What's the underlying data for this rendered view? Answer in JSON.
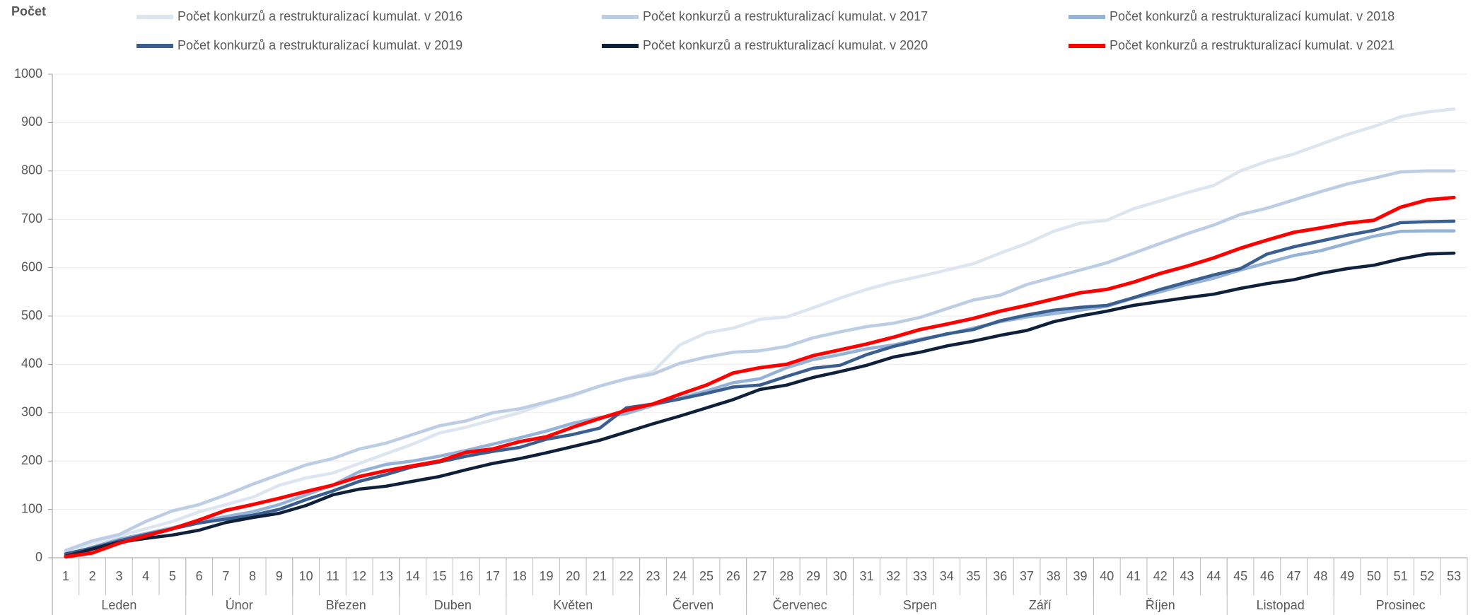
{
  "chart_data": {
    "type": "line",
    "y_label": "Počet",
    "categories": [
      1,
      2,
      3,
      4,
      5,
      6,
      7,
      8,
      9,
      10,
      11,
      12,
      13,
      14,
      15,
      16,
      17,
      18,
      19,
      20,
      21,
      22,
      23,
      24,
      25,
      26,
      27,
      28,
      29,
      30,
      31,
      32,
      33,
      34,
      35,
      36,
      37,
      38,
      39,
      40,
      41,
      42,
      43,
      44,
      45,
      46,
      47,
      48,
      49,
      50,
      51,
      52,
      53
    ],
    "groups": [
      {
        "label": "Leden",
        "count": 5
      },
      {
        "label": "Únor",
        "count": 4
      },
      {
        "label": "Březen",
        "count": 4
      },
      {
        "label": "Duben",
        "count": 4
      },
      {
        "label": "Květen",
        "count": 5
      },
      {
        "label": "Červen",
        "count": 4
      },
      {
        "label": "Červenec",
        "count": 4
      },
      {
        "label": "Srpen",
        "count": 5
      },
      {
        "label": "Září",
        "count": 4
      },
      {
        "label": "Říjen",
        "count": 5
      },
      {
        "label": "Listopad",
        "count": 4
      },
      {
        "label": "Prosinec",
        "count": 5
      }
    ],
    "ylim": [
      0,
      1000
    ],
    "yticks": [
      0,
      100,
      200,
      300,
      400,
      500,
      600,
      700,
      800,
      900,
      1000
    ],
    "grid": true,
    "series": [
      {
        "name": "Počet konkurzů a restrukturalizací kumulat. v 2016",
        "color": "#dde6f0",
        "values": [
          10,
          30,
          45,
          60,
          75,
          95,
          110,
          125,
          150,
          165,
          175,
          195,
          215,
          235,
          258,
          270,
          285,
          300,
          320,
          335,
          355,
          370,
          385,
          440,
          465,
          475,
          493,
          498,
          517,
          537,
          555,
          570,
          582,
          595,
          608,
          630,
          650,
          675,
          692,
          698,
          722,
          738,
          755,
          770,
          800,
          820,
          835,
          855,
          875,
          892,
          912,
          922,
          928
        ]
      },
      {
        "name": "Počet konkurzů a restrukturalizací kumulat. v 2017",
        "color": "#bccde4",
        "values": [
          15,
          35,
          48,
          75,
          97,
          110,
          130,
          152,
          172,
          192,
          205,
          225,
          237,
          255,
          273,
          283,
          300,
          308,
          322,
          337,
          355,
          370,
          380,
          402,
          415,
          425,
          428,
          437,
          455,
          467,
          478,
          485,
          497,
          515,
          533,
          543,
          565,
          580,
          595,
          610,
          630,
          650,
          670,
          688,
          710,
          723,
          740,
          757,
          773,
          785,
          798,
          800,
          800
        ]
      },
      {
        "name": "Počet konkurzů a restrukturalizací kumulat. v 2018",
        "color": "#95b3d7",
        "values": [
          5,
          22,
          38,
          50,
          62,
          75,
          85,
          95,
          110,
          130,
          150,
          178,
          193,
          200,
          210,
          222,
          235,
          248,
          262,
          278,
          290,
          298,
          315,
          330,
          345,
          362,
          370,
          393,
          410,
          420,
          432,
          440,
          452,
          462,
          475,
          488,
          498,
          505,
          512,
          520,
          537,
          550,
          565,
          578,
          595,
          610,
          625,
          635,
          650,
          665,
          675,
          676,
          676
        ]
      },
      {
        "name": "Počet konkurzů a restrukturalizací kumulat. v 2019",
        "color": "#3a5f8f",
        "values": [
          8,
          20,
          35,
          48,
          60,
          72,
          80,
          88,
          100,
          120,
          138,
          158,
          172,
          188,
          198,
          210,
          220,
          228,
          245,
          255,
          268,
          310,
          318,
          328,
          340,
          353,
          357,
          375,
          392,
          398,
          420,
          437,
          450,
          463,
          472,
          490,
          502,
          512,
          518,
          522,
          538,
          555,
          570,
          585,
          598,
          628,
          643,
          655,
          667,
          677,
          693,
          695,
          696
        ]
      },
      {
        "name": "Počet konkurzů a restrukturalizací kumulat. v 2020",
        "color": "#0f203b",
        "values": [
          3,
          18,
          32,
          40,
          47,
          57,
          73,
          83,
          92,
          108,
          130,
          142,
          148,
          158,
          168,
          182,
          195,
          205,
          217,
          230,
          243,
          260,
          277,
          293,
          310,
          327,
          348,
          357,
          373,
          385,
          398,
          415,
          425,
          438,
          448,
          460,
          470,
          488,
          500,
          510,
          522,
          530,
          538,
          545,
          557,
          567,
          575,
          588,
          598,
          605,
          618,
          628,
          630
        ]
      },
      {
        "name": "Počet konkurzů a restrukturalizací kumulat. v 2021",
        "color": "#ff0000",
        "values": [
          2,
          10,
          30,
          45,
          60,
          78,
          98,
          110,
          123,
          137,
          150,
          168,
          180,
          190,
          200,
          218,
          225,
          240,
          250,
          270,
          288,
          305,
          318,
          338,
          357,
          382,
          393,
          400,
          418,
          430,
          442,
          456,
          472,
          483,
          495,
          510,
          522,
          535,
          548,
          555,
          570,
          588,
          603,
          620,
          640,
          657,
          673,
          682,
          692,
          698,
          725,
          740,
          745
        ]
      }
    ]
  }
}
